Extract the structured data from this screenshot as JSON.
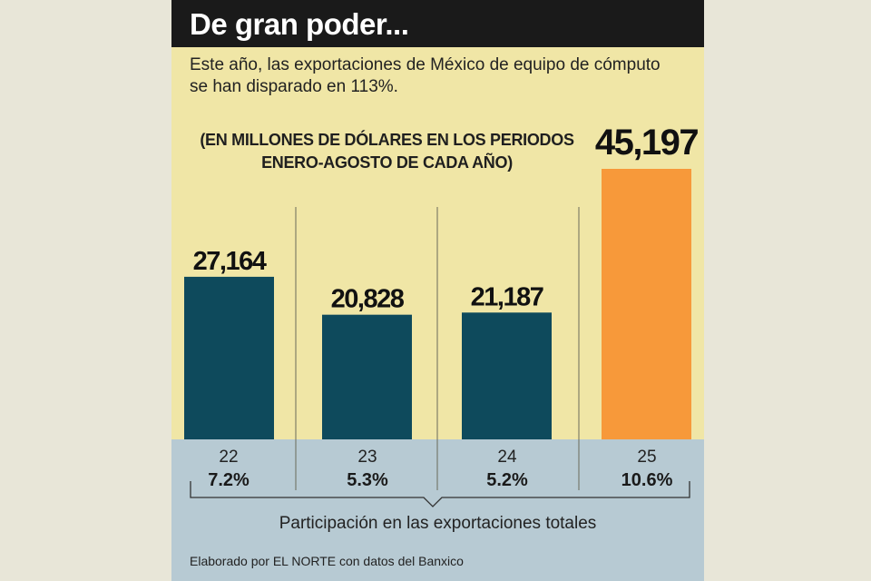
{
  "header": {
    "title": "De gran poder...",
    "subtitle": "Este año, las exportaciones de México de equipo de cómputo se han disparado en 113%.",
    "unit_note_line1": "(EN MILLONES DE DÓLARES EN LOS PERIODOS",
    "unit_note_line2": "ENERO-AGOSTO DE CADA AÑO)"
  },
  "chart_data": {
    "type": "bar",
    "title": "De gran poder...",
    "subtitle": "Este año, las exportaciones de México de equipo de cómputo se han disparado en 113%.",
    "ylabel": "Millones de dólares (enero-agosto)",
    "categories": [
      "22",
      "23",
      "24",
      "25"
    ],
    "values": [
      27164,
      20828,
      21187,
      45197
    ],
    "value_labels": [
      "27,164",
      "20,828",
      "21,187",
      "45,197"
    ],
    "share_of_total_exports": [
      "7.2%",
      "5.3%",
      "5.2%",
      "10.6%"
    ],
    "highlight_index": 3,
    "ylim": [
      0,
      45197
    ],
    "grid": false
  },
  "footer": {
    "participation_label": "Participación en las exportaciones totales",
    "credit": "Elaborado por EL NORTE con datos del Banxico"
  },
  "colors": {
    "background": "#f0e6a6",
    "title_bar": "#1a1a1a",
    "bar": "#0e4a5c",
    "bar_highlight": "#f7993a",
    "bottom_band": "#b7cad3"
  }
}
